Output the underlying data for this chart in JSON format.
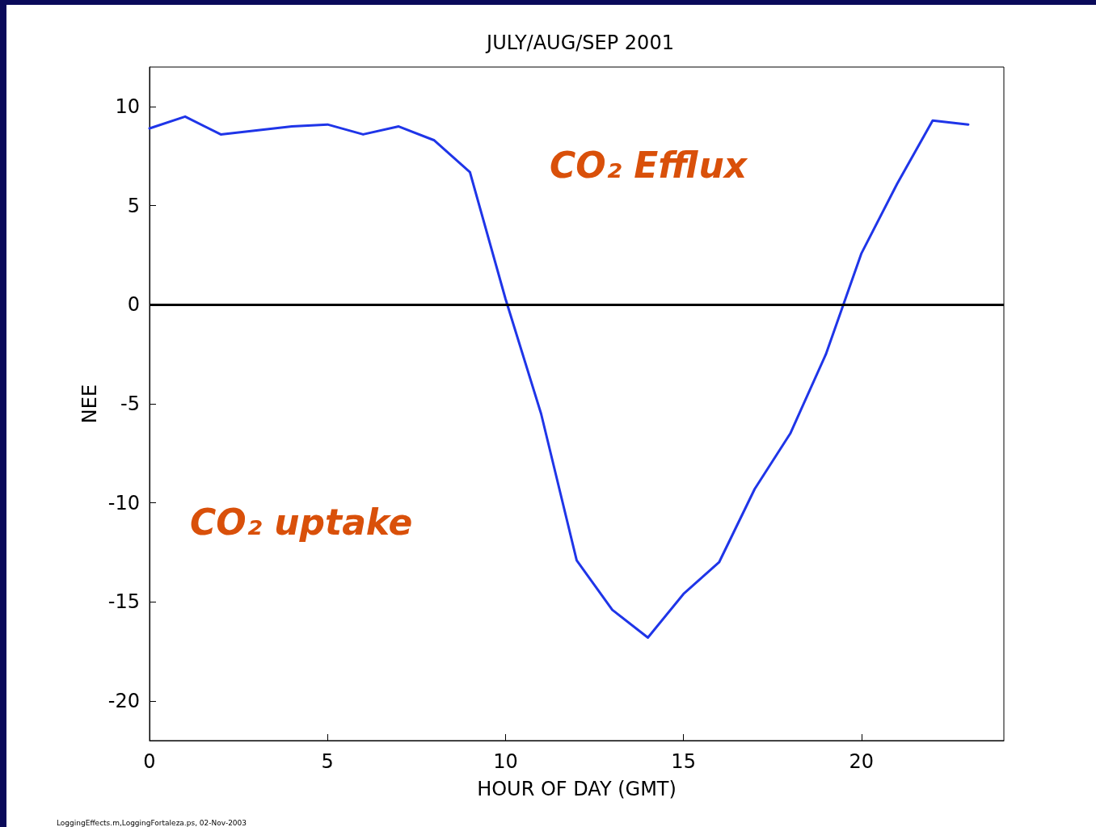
{
  "chart_data": {
    "type": "line",
    "title": "JULY/AUG/SEP 2001",
    "xlabel": "HOUR OF DAY (GMT)",
    "ylabel": "NEE",
    "x": [
      0,
      1,
      2,
      3,
      4,
      5,
      6,
      7,
      8,
      9,
      10,
      11,
      12,
      13,
      14,
      15,
      16,
      17,
      18,
      19,
      20,
      21,
      22,
      23
    ],
    "series": [
      {
        "color": "#1f35e8",
        "values": [
          8.9,
          9.5,
          8.6,
          8.8,
          9.0,
          9.1,
          8.6,
          9.0,
          8.3,
          6.7,
          0.3,
          -5.5,
          -12.9,
          -15.4,
          -16.8,
          -14.6,
          -13.0,
          -9.3,
          -6.5,
          -2.5,
          2.6,
          6.1,
          9.3,
          9.1
        ]
      }
    ],
    "xlim": [
      0,
      24
    ],
    "xticks": [
      0,
      5,
      10,
      15,
      20
    ],
    "ylim": [
      -22,
      12
    ],
    "yticks": [
      -20,
      -15,
      -10,
      -5,
      0,
      5,
      10
    ],
    "ref_lines": [
      {
        "axis": "y",
        "value": 0,
        "color": "#000000"
      }
    ],
    "annotations": [
      "CO₂ Efflux",
      "CO₂ uptake",
      "LoggingEffects.m,LoggingFortaleza.ps, 02-Nov-2003"
    ],
    "grid": false,
    "marker": "none",
    "line_style": "solid"
  }
}
